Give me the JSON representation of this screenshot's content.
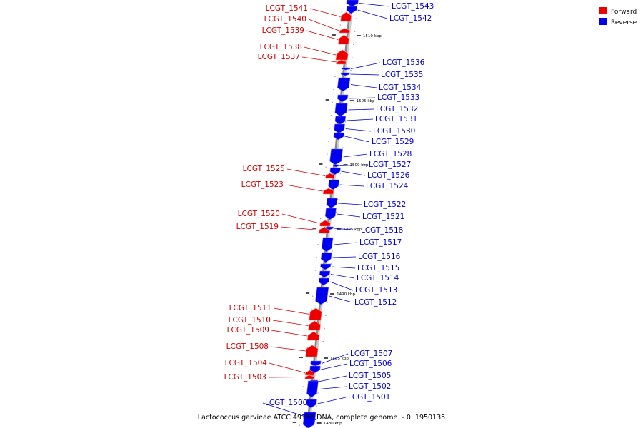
{
  "caption": "Lactococcus garvieae ATCC 49156 DNA, complete genome. - 0..1950135",
  "legend": [
    {
      "label": "Forward",
      "color": "#ee0000"
    },
    {
      "label": "Reverse",
      "color": "#0000ee"
    }
  ],
  "colors": {
    "forward": "#ee0000",
    "reverse": "#0000ee",
    "forward_label": "#cc0000",
    "reverse_label": "#0000cc",
    "backbone": "#888888"
  },
  "scale_ticks": [
    "1510 kbp",
    "1505 kbp",
    "1500 kbp",
    "1495 kbp",
    "1490 kbp",
    "1485 kbp",
    "1480 kbp"
  ],
  "genes": [
    {
      "name": "LCGT_1543",
      "strand": "reverse"
    },
    {
      "name": "LCGT_1542",
      "strand": "reverse"
    },
    {
      "name": "LCGT_1541",
      "strand": "forward"
    },
    {
      "name": "LCGT_1540",
      "strand": "forward"
    },
    {
      "name": "LCGT_1539",
      "strand": "forward"
    },
    {
      "name": "LCGT_1538",
      "strand": "forward"
    },
    {
      "name": "LCGT_1537",
      "strand": "forward"
    },
    {
      "name": "LCGT_1536",
      "strand": "reverse"
    },
    {
      "name": "LCGT_1535",
      "strand": "reverse"
    },
    {
      "name": "LCGT_1534",
      "strand": "reverse"
    },
    {
      "name": "LCGT_1533",
      "strand": "reverse"
    },
    {
      "name": "LCGT_1532",
      "strand": "reverse"
    },
    {
      "name": "LCGT_1531",
      "strand": "reverse"
    },
    {
      "name": "LCGT_1530",
      "strand": "reverse"
    },
    {
      "name": "LCGT_1529",
      "strand": "reverse"
    },
    {
      "name": "LCGT_1528",
      "strand": "reverse"
    },
    {
      "name": "LCGT_1527",
      "strand": "reverse"
    },
    {
      "name": "LCGT_1526",
      "strand": "reverse"
    },
    {
      "name": "LCGT_1525",
      "strand": "forward"
    },
    {
      "name": "LCGT_1524",
      "strand": "reverse"
    },
    {
      "name": "LCGT_1523",
      "strand": "forward"
    },
    {
      "name": "LCGT_1522",
      "strand": "reverse"
    },
    {
      "name": "LCGT_1521",
      "strand": "reverse"
    },
    {
      "name": "LCGT_1520",
      "strand": "forward"
    },
    {
      "name": "LCGT_1519",
      "strand": "forward"
    },
    {
      "name": "LCGT_1518",
      "strand": "reverse"
    },
    {
      "name": "LCGT_1517",
      "strand": "reverse"
    },
    {
      "name": "LCGT_1516",
      "strand": "reverse"
    },
    {
      "name": "LCGT_1515",
      "strand": "reverse"
    },
    {
      "name": "LCGT_1514",
      "strand": "reverse"
    },
    {
      "name": "LCGT_1513",
      "strand": "reverse"
    },
    {
      "name": "LCGT_1512",
      "strand": "reverse"
    },
    {
      "name": "LCGT_1511",
      "strand": "forward"
    },
    {
      "name": "LCGT_1510",
      "strand": "forward"
    },
    {
      "name": "LCGT_1509",
      "strand": "forward"
    },
    {
      "name": "LCGT_1508",
      "strand": "forward"
    },
    {
      "name": "LCGT_1507",
      "strand": "reverse"
    },
    {
      "name": "LCGT_1506",
      "strand": "reverse"
    },
    {
      "name": "LCGT_1505",
      "strand": "reverse"
    },
    {
      "name": "LCGT_1504",
      "strand": "forward"
    },
    {
      "name": "LCGT_1503",
      "strand": "forward"
    },
    {
      "name": "LCGT_1502",
      "strand": "reverse"
    },
    {
      "name": "LCGT_1501",
      "strand": "reverse"
    },
    {
      "name": "LCGT_1500",
      "strand": "reverse"
    }
  ]
}
